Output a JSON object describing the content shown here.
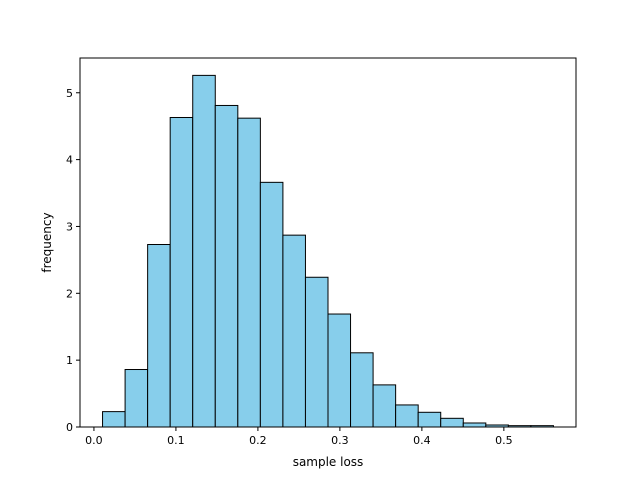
{
  "chart_data": {
    "type": "bar",
    "variant": "histogram",
    "title": "",
    "xlabel": "sample loss",
    "ylabel": "frequency",
    "bin_edges": [
      0.0105,
      0.038,
      0.0655,
      0.093,
      0.1205,
      0.148,
      0.1755,
      0.203,
      0.2305,
      0.258,
      0.2855,
      0.313,
      0.3405,
      0.368,
      0.3955,
      0.423,
      0.4505,
      0.478,
      0.5055,
      0.533,
      0.5605
    ],
    "values": [
      0.23,
      0.86,
      2.73,
      4.63,
      5.26,
      4.81,
      4.62,
      3.66,
      2.87,
      2.24,
      1.69,
      1.11,
      0.63,
      0.33,
      0.22,
      0.13,
      0.06,
      0.03,
      0.02,
      0.02
    ],
    "xlim": [
      -0.017,
      0.588
    ],
    "ylim": [
      0,
      5.52
    ],
    "xticks": [
      0.0,
      0.1,
      0.2,
      0.3,
      0.4,
      0.5
    ],
    "xtick_labels": [
      "0.0",
      "0.1",
      "0.2",
      "0.3",
      "0.4",
      "0.5"
    ],
    "yticks": [
      0,
      1,
      2,
      3,
      4,
      5
    ],
    "ytick_labels": [
      "0",
      "1",
      "2",
      "3",
      "4",
      "5"
    ],
    "bar_color": "#87ceeb",
    "edge_color": "#000000",
    "grid": false,
    "legend": false
  }
}
